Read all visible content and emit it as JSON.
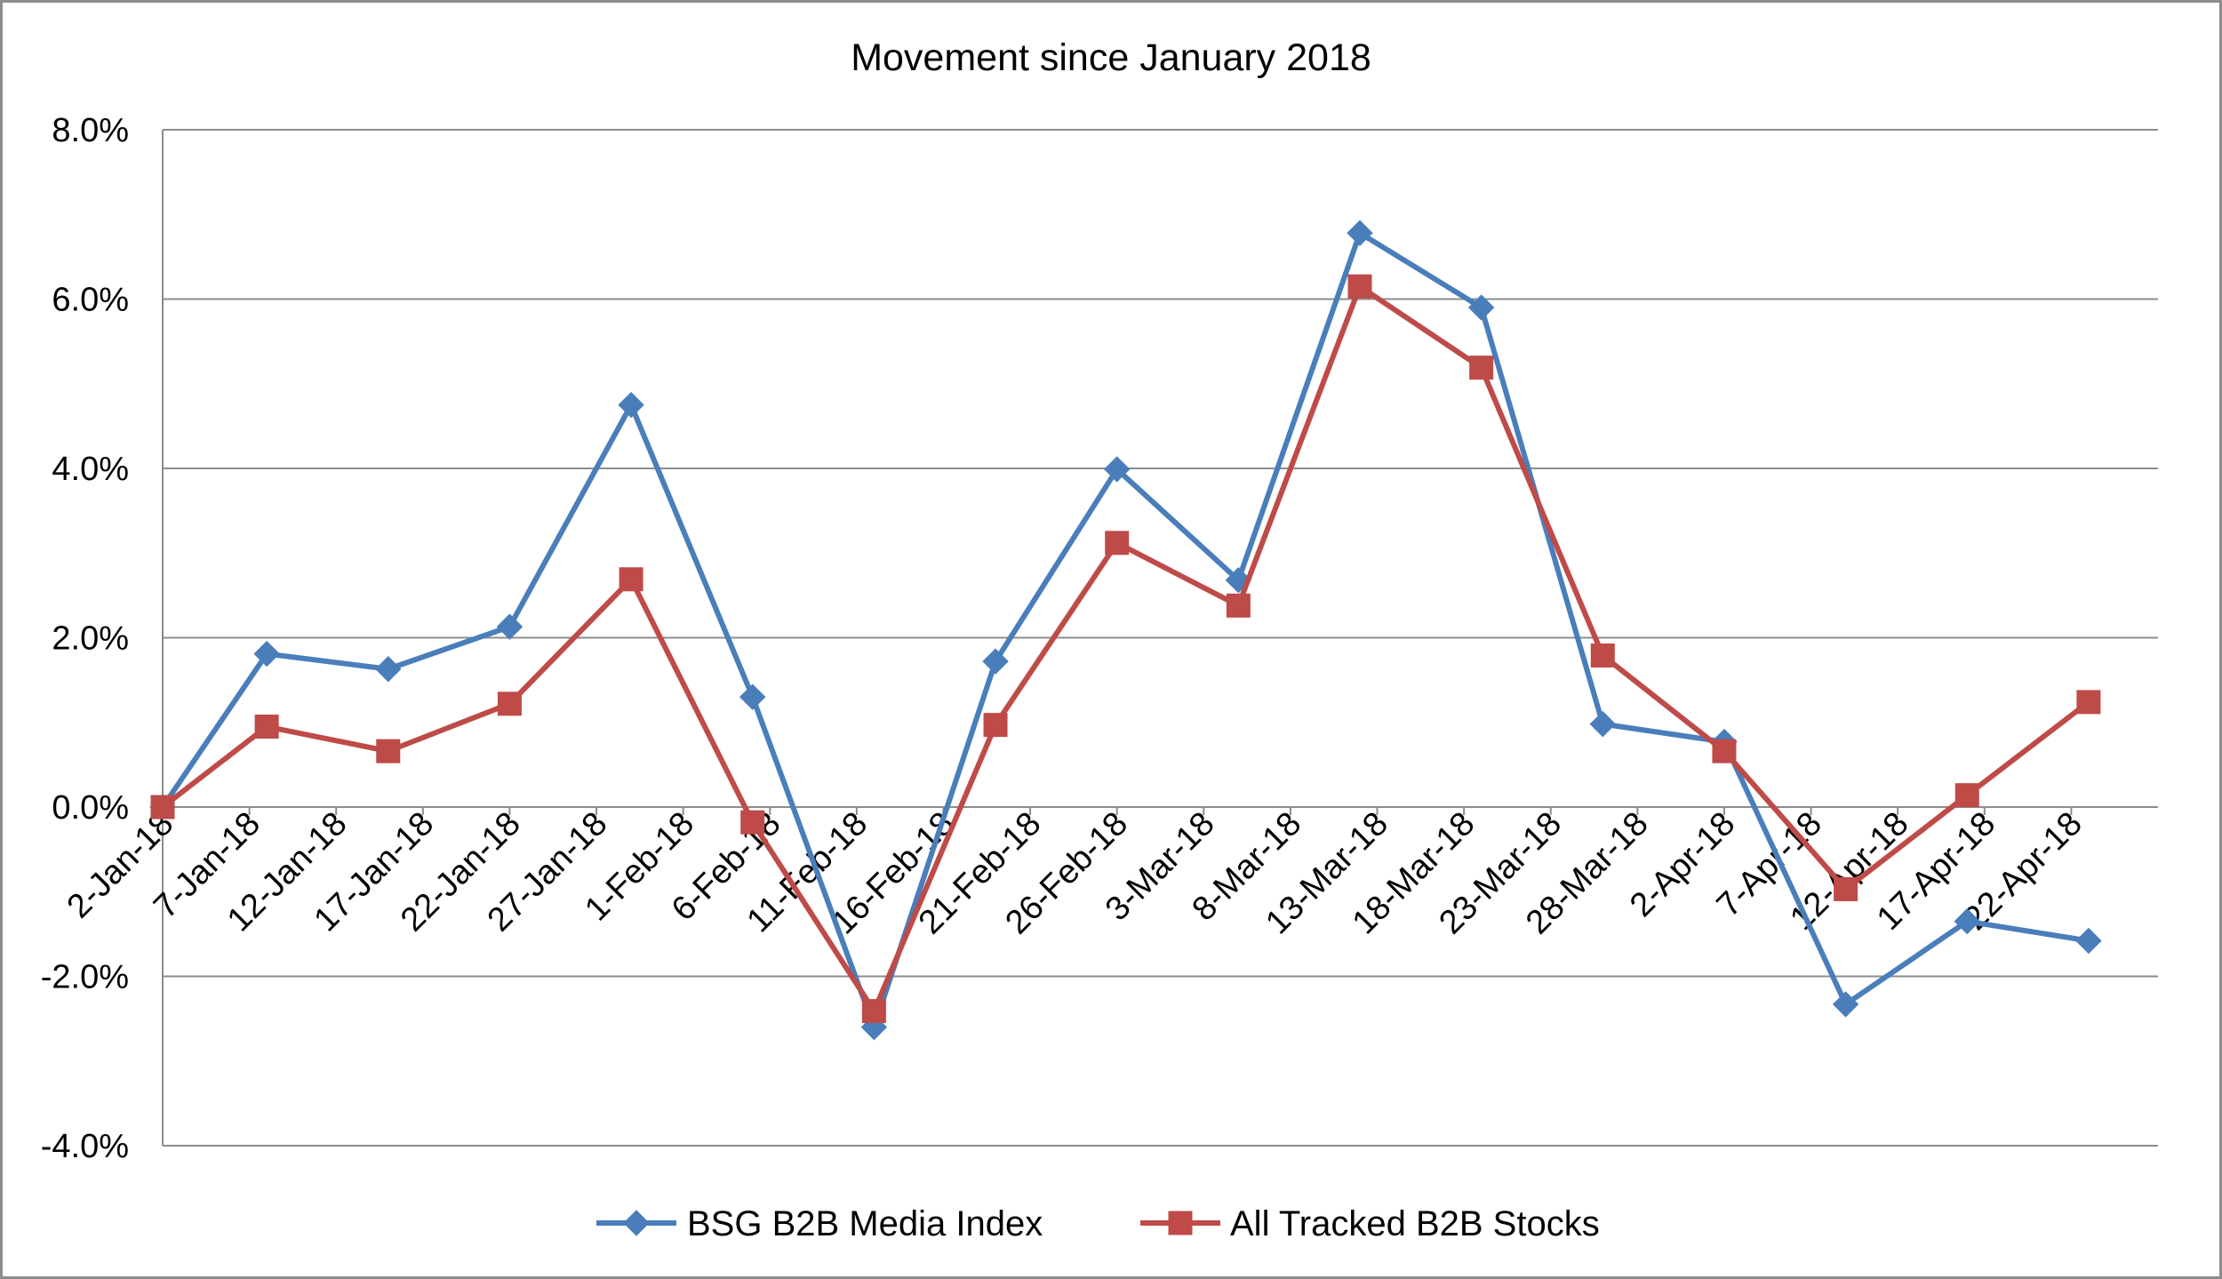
{
  "chart_data": {
    "type": "line",
    "title": "Movement since January 2018",
    "xlabel": "",
    "ylabel": "",
    "ylim": [
      -0.04,
      0.08
    ],
    "y_ticks": [
      "8.0%",
      "6.0%",
      "4.0%",
      "2.0%",
      "0.0%",
      "-2.0%",
      "-4.0%"
    ],
    "y_tick_values": [
      0.08,
      0.06,
      0.04,
      0.02,
      0.0,
      -0.02,
      -0.04
    ],
    "grid": true,
    "legend_position": "bottom",
    "categories": [
      "2-Jan-18",
      "7-Jan-18",
      "12-Jan-18",
      "17-Jan-18",
      "22-Jan-18",
      "27-Jan-18",
      "1-Feb-18",
      "6-Feb-18",
      "11-Feb-18",
      "16-Feb-18",
      "21-Feb-18",
      "26-Feb-18",
      "3-Mar-18",
      "8-Mar-18",
      "13-Mar-18",
      "18-Mar-18",
      "23-Mar-18",
      "28-Mar-18",
      "2-Apr-18",
      "7-Apr-18",
      "12-Apr-18",
      "17-Apr-18",
      "22-Apr-18"
    ],
    "series": [
      {
        "name": "BSG B2B Media Index",
        "color": "#4a7ebb",
        "marker": "diamond",
        "points": [
          {
            "x": "2-Jan-18",
            "y": 0.0
          },
          {
            "x": "8-Jan-18",
            "y": 0.0181
          },
          {
            "x": "15-Jan-18",
            "y": 0.0163
          },
          {
            "x": "22-Jan-18",
            "y": 0.0213
          },
          {
            "x": "29-Jan-18",
            "y": 0.0475
          },
          {
            "x": "5-Feb-18",
            "y": 0.013
          },
          {
            "x": "12-Feb-18",
            "y": -0.026
          },
          {
            "x": "19-Feb-18",
            "y": 0.0172
          },
          {
            "x": "26-Feb-18",
            "y": 0.0399
          },
          {
            "x": "5-Mar-18",
            "y": 0.0268
          },
          {
            "x": "12-Mar-18",
            "y": 0.0678
          },
          {
            "x": "19-Mar-18",
            "y": 0.059
          },
          {
            "x": "26-Mar-18",
            "y": 0.0098
          },
          {
            "x": "2-Apr-18",
            "y": 0.0077
          },
          {
            "x": "9-Apr-18",
            "y": -0.0233
          },
          {
            "x": "16-Apr-18",
            "y": -0.0135
          },
          {
            "x": "23-Apr-18",
            "y": -0.0158
          }
        ]
      },
      {
        "name": "All Tracked B2B Stocks",
        "color": "#be4b48",
        "marker": "square",
        "points": [
          {
            "x": "2-Jan-18",
            "y": 0.0
          },
          {
            "x": "8-Jan-18",
            "y": 0.0095
          },
          {
            "x": "15-Jan-18",
            "y": 0.0066
          },
          {
            "x": "22-Jan-18",
            "y": 0.0122
          },
          {
            "x": "29-Jan-18",
            "y": 0.0269
          },
          {
            "x": "5-Feb-18",
            "y": -0.0018
          },
          {
            "x": "12-Feb-18",
            "y": -0.0241
          },
          {
            "x": "19-Feb-18",
            "y": 0.0097
          },
          {
            "x": "26-Feb-18",
            "y": 0.0312
          },
          {
            "x": "5-Mar-18",
            "y": 0.0238
          },
          {
            "x": "12-Mar-18",
            "y": 0.0615
          },
          {
            "x": "19-Mar-18",
            "y": 0.0519
          },
          {
            "x": "26-Mar-18",
            "y": 0.0179
          },
          {
            "x": "2-Apr-18",
            "y": 0.0066
          },
          {
            "x": "9-Apr-18",
            "y": -0.0097
          },
          {
            "x": "16-Apr-18",
            "y": 0.0014
          },
          {
            "x": "23-Apr-18",
            "y": 0.0124
          }
        ]
      }
    ]
  }
}
